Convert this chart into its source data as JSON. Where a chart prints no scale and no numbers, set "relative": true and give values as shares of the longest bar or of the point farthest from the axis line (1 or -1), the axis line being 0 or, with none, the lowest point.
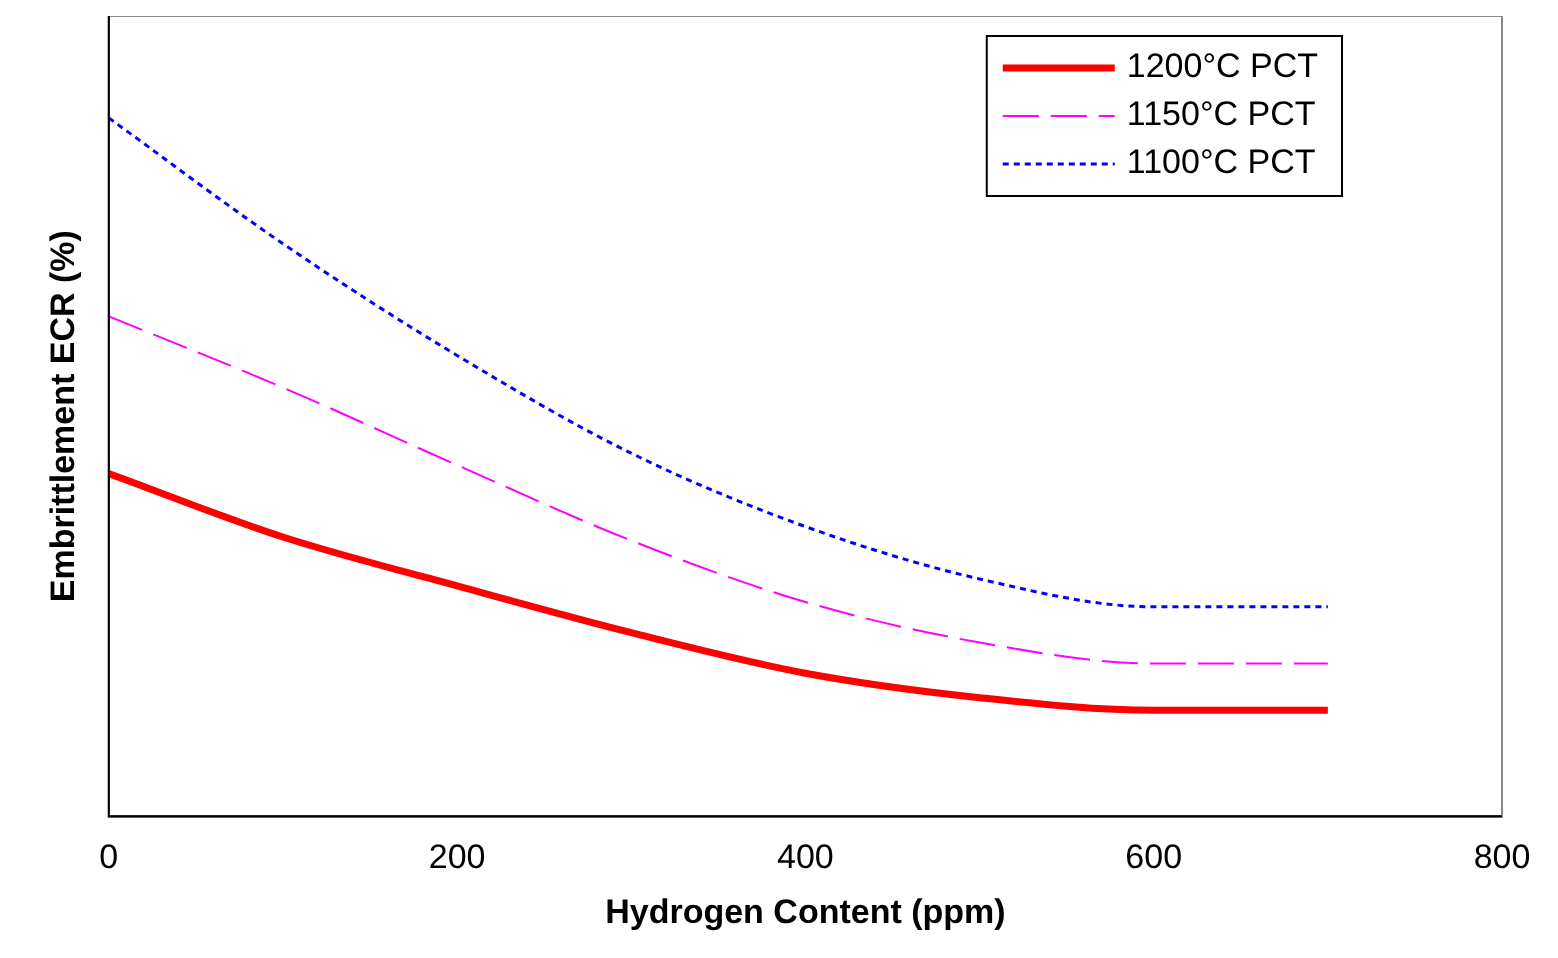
{
  "chart_data": {
    "type": "line",
    "xlabel": "Hydrogen Content (ppm)",
    "ylabel": "Embrittlement ECR (%)",
    "x": [
      0,
      100,
      200,
      300,
      400,
      500,
      600,
      700
    ],
    "xlim": [
      0,
      800
    ],
    "xticks": [
      0,
      200,
      400,
      600,
      800
    ],
    "relative": true,
    "tick_labels": "x",
    "grid": false,
    "legend": "top right",
    "marker": "none",
    "series": [
      {
        "name": "1200°C PCT",
        "color": "#ff0000",
        "line_style": "solid",
        "values": [
          0.491,
          0.4,
          0.33,
          0.263,
          0.205,
          0.17,
          0.152,
          0.152
        ]
      },
      {
        "name": "1150°C PCT",
        "color": "#ff00ff",
        "line_style": "dashed",
        "values": [
          0.716,
          0.614,
          0.503,
          0.395,
          0.307,
          0.249,
          0.219,
          0.219
        ]
      },
      {
        "name": "1100°C PCT",
        "color": "#0000ff",
        "line_style": "dotted",
        "values": [
          1,
          0.82,
          0.66,
          0.52,
          0.415,
          0.34,
          0.3,
          0.3
        ]
      }
    ]
  }
}
